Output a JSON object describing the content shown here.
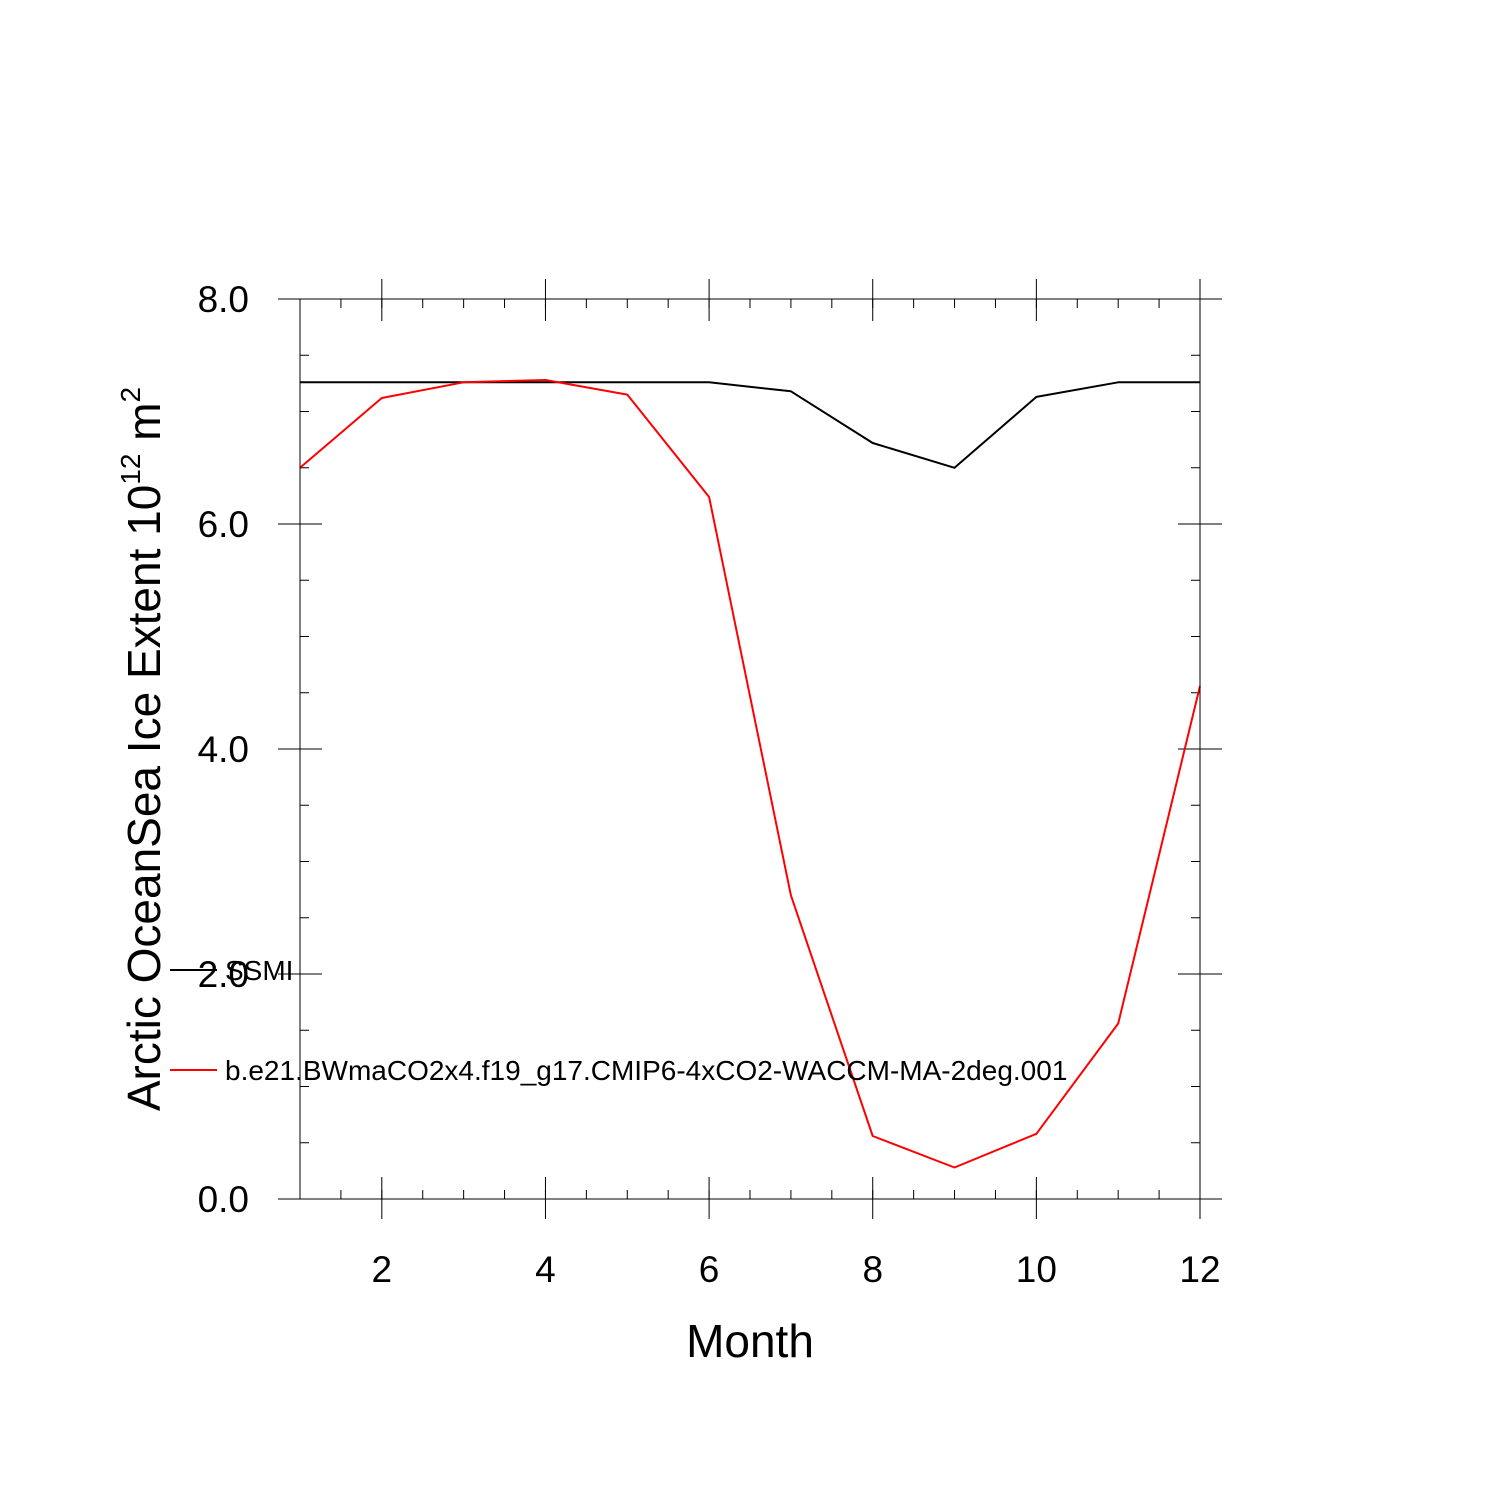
{
  "chart_data": {
    "type": "line",
    "title": "",
    "xlabel": "Month",
    "ylabel_main": "Arctic OceanSea Ice Extent 10",
    "ylabel_sup": "12",
    "ylabel_unit": "m",
    "ylabel_unit_sup": "2",
    "xlim": [
      1,
      12
    ],
    "ylim": [
      0,
      8
    ],
    "x_ticks": [
      2,
      4,
      6,
      8,
      10,
      12
    ],
    "x_tick_labels": [
      "2",
      "4",
      "6",
      "8",
      "10",
      "12"
    ],
    "y_ticks": [
      0,
      2,
      4,
      6,
      8
    ],
    "y_tick_labels": [
      "0.0",
      "2.0",
      "4.0",
      "6.0",
      "8.0"
    ],
    "grid": false,
    "legend_placement": "lower-left",
    "x": [
      1,
      2,
      3,
      4,
      5,
      6,
      7,
      8,
      9,
      10,
      11,
      12
    ],
    "series": [
      {
        "name": "SSMI",
        "color": "#000000",
        "values": [
          7.26,
          7.26,
          7.26,
          7.26,
          7.26,
          7.26,
          7.18,
          6.72,
          6.5,
          7.13,
          7.26,
          7.26
        ]
      },
      {
        "name": "b.e21.BWmaCO2x4.f19_g17.CMIP6-4xCO2-WACCM-MA-2deg.001",
        "color": "#ff0000",
        "values": [
          6.5,
          7.12,
          7.26,
          7.28,
          7.15,
          6.24,
          2.7,
          0.56,
          0.28,
          0.58,
          1.56,
          4.56
        ]
      }
    ]
  }
}
